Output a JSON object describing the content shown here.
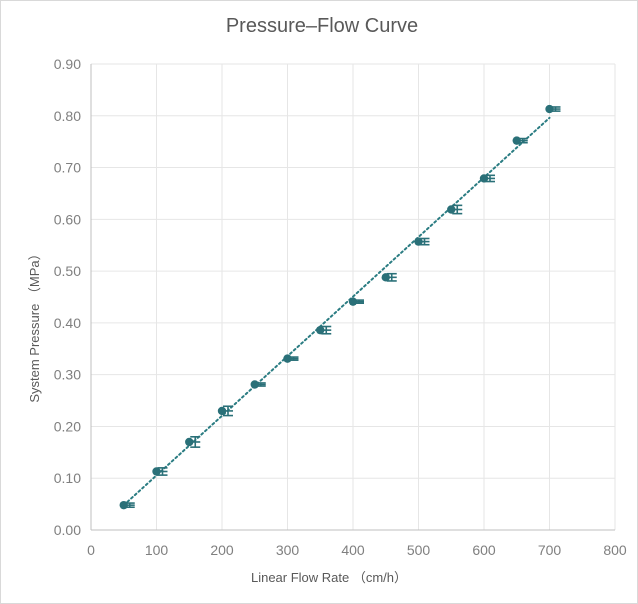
{
  "chart_data": {
    "type": "scatter",
    "title": "Pressure–Flow Curve",
    "xlabel": "Linear Flow Rate （cm/h）",
    "ylabel": "System Pressure （MPa）",
    "xlim": [
      0,
      800
    ],
    "ylim": [
      0.0,
      0.9
    ],
    "xticks": [
      "0",
      "100",
      "200",
      "300",
      "400",
      "500",
      "600",
      "700",
      "800"
    ],
    "yticks": [
      "0.00",
      "0.10",
      "0.20",
      "0.30",
      "0.40",
      "0.50",
      "0.60",
      "0.70",
      "0.80",
      "0.90"
    ],
    "grid": true,
    "trendline": "linear (dotted)",
    "colors": {
      "marker": "#2a7078",
      "trendline": "#2a7c82",
      "grid": "#e6e6e6",
      "axis": "#bfbfbf"
    },
    "series": [
      {
        "x": [
          50,
          100,
          150,
          200,
          250,
          300,
          350,
          400,
          450,
          500,
          550,
          600,
          650,
          700
        ],
        "y": [
          0.048,
          0.113,
          0.17,
          0.23,
          0.281,
          0.331,
          0.386,
          0.441,
          0.488,
          0.557,
          0.619,
          0.679,
          0.752,
          0.813
        ],
        "error": [
          0.004,
          0.007,
          0.01,
          0.009,
          0.003,
          0.003,
          0.007,
          0.003,
          0.007,
          0.006,
          0.008,
          0.006,
          0.004,
          0.004
        ]
      }
    ]
  }
}
